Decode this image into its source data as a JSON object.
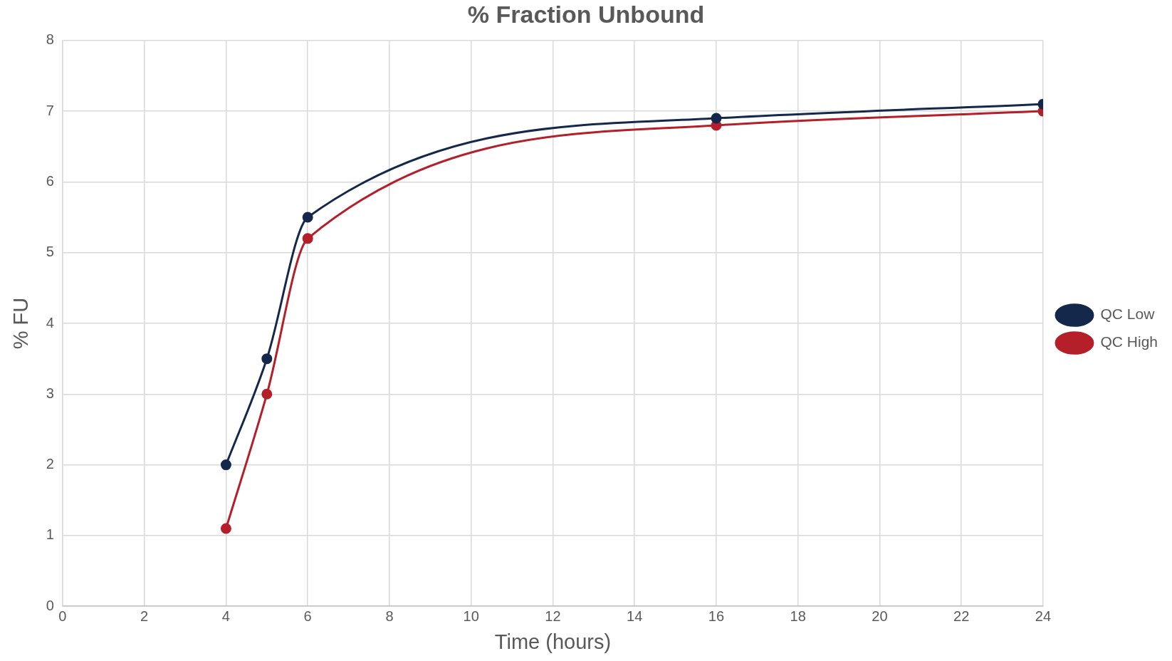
{
  "chart_data": {
    "type": "line",
    "title": "% Fraction Unbound",
    "xlabel": "Time (hours)",
    "ylabel": "% FU",
    "xlim": [
      0,
      24
    ],
    "xticks": [
      0,
      2,
      4,
      6,
      8,
      10,
      12,
      14,
      16,
      18,
      20,
      22,
      24
    ],
    "ylim": [
      0,
      8
    ],
    "yticks": [
      0,
      1,
      2,
      3,
      4,
      5,
      6,
      7,
      8
    ],
    "grid": true,
    "legend": "right",
    "marker": "circle",
    "line_style": "solid",
    "x": [
      4,
      5,
      6,
      16,
      24
    ],
    "series": [
      {
        "name": "QC Low",
        "color": "#14284b",
        "values": [
          2,
          3.5,
          5.5,
          6.9,
          7.1
        ]
      },
      {
        "name": "QC High",
        "color": "#b41f2a",
        "values": [
          1.1,
          3,
          5.2,
          6.8,
          7.0
        ]
      }
    ]
  }
}
